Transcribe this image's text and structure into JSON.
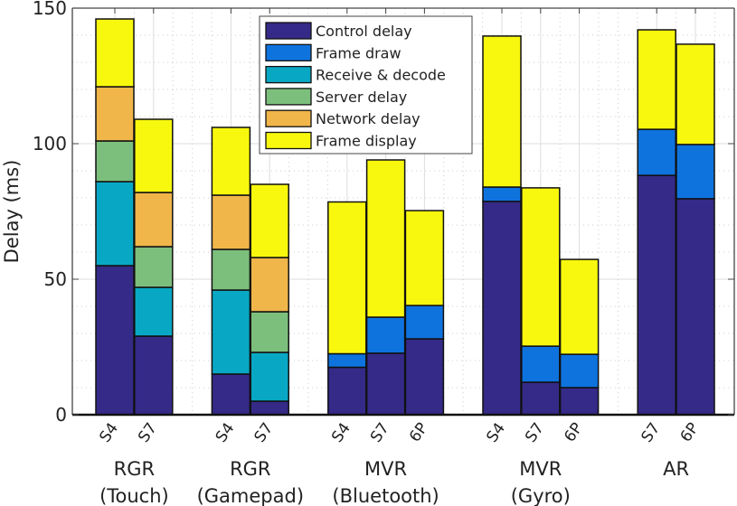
{
  "chart_data": {
    "type": "bar",
    "stacked": true,
    "ylabel": "Delay (ms)",
    "ylim": [
      0,
      150
    ],
    "yticks": [
      0,
      50,
      100,
      150
    ],
    "grid": true,
    "legend_position": "top-center",
    "series": [
      {
        "name": "Control delay",
        "color": "#352a87"
      },
      {
        "name": "Frame draw",
        "color": "#0f73de"
      },
      {
        "name": "Receive & decode",
        "color": "#08a8c4"
      },
      {
        "name": "Server delay",
        "color": "#7cbf7c"
      },
      {
        "name": "Network delay",
        "color": "#f0b64a"
      },
      {
        "name": "Frame display",
        "color": "#f8f80e"
      }
    ],
    "groups": [
      {
        "label": [
          "RGR",
          "(Touch)"
        ],
        "bars": [
          {
            "label": "S4",
            "values": [
              55,
              0,
              31,
              15,
              20,
              25
            ]
          },
          {
            "label": "S7",
            "values": [
              29,
              0,
              18,
              15,
              20,
              27
            ]
          }
        ]
      },
      {
        "label": [
          "RGR",
          "(Gamepad)"
        ],
        "bars": [
          {
            "label": "S4",
            "values": [
              15,
              0,
              31,
              15,
              20,
              25
            ]
          },
          {
            "label": "S7",
            "values": [
              5,
              0,
              18,
              15,
              20,
              27
            ]
          }
        ]
      },
      {
        "label": [
          "MVR",
          "(Bluetooth)"
        ],
        "bars": [
          {
            "label": "S4",
            "values": [
              17.5,
              5,
              0,
              0,
              0,
              56
            ]
          },
          {
            "label": "S7",
            "values": [
              22.7,
              13.3,
              0,
              0,
              0,
              58
            ]
          },
          {
            "label": "6P",
            "values": [
              28,
              12.3,
              0,
              0,
              0,
              35
            ]
          }
        ]
      },
      {
        "label": [
          "MVR",
          "(Gyro)"
        ],
        "bars": [
          {
            "label": "S4",
            "values": [
              78.7,
              5.3,
              0,
              0,
              0,
              55.7
            ]
          },
          {
            "label": "S7",
            "values": [
              12,
              13.3,
              0,
              0,
              0,
              58.4
            ]
          },
          {
            "label": "6P",
            "values": [
              10,
              12.3,
              0,
              0,
              0,
              35
            ]
          }
        ]
      },
      {
        "label": [
          "AR"
        ],
        "bars": [
          {
            "label": "S7",
            "values": [
              88.3,
              17,
              0,
              0,
              0,
              36.7
            ]
          },
          {
            "label": "6P",
            "values": [
              79.7,
              20,
              0,
              0,
              0,
              37
            ]
          }
        ]
      }
    ]
  }
}
